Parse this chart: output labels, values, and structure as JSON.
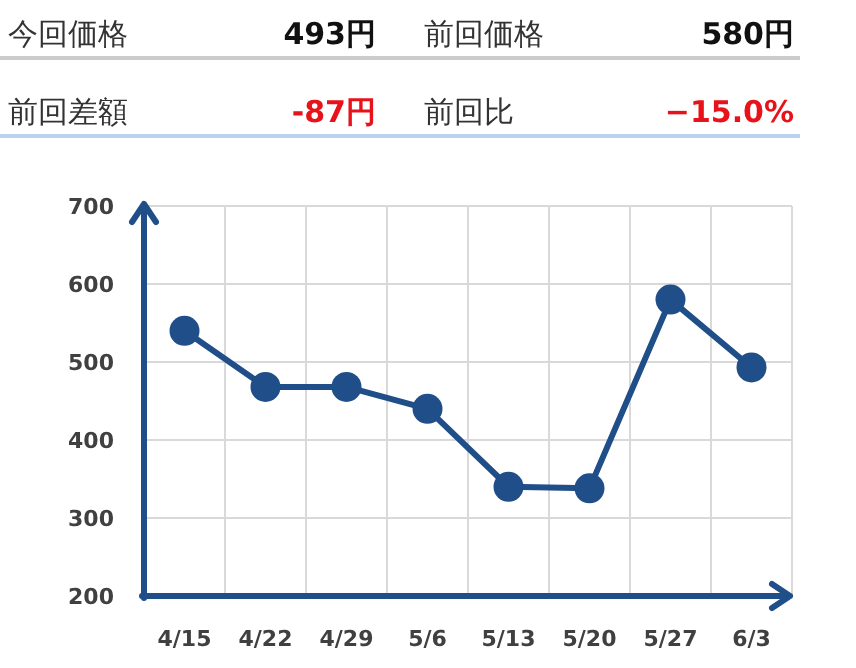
{
  "chart_data": [
    {
      "type": "other",
      "annotations": [
        "今回価格",
        "493円",
        "前回価格",
        "580円",
        "前回差額",
        "-87円",
        "前回比",
        "−15.0%"
      ]
    },
    {
      "type": "line",
      "categories": [
        "4/15",
        "4/22",
        "4/29",
        "5/6",
        "5/13",
        "5/20",
        "5/27",
        "6/3"
      ],
      "series": [
        {
          "color": "#1f4e89",
          "values": [
            540,
            468,
            468,
            440,
            340,
            338,
            580,
            493
          ]
        }
      ],
      "ylim": [
        200,
        700
      ],
      "yticks": [
        200,
        300,
        400,
        500,
        600,
        700
      ],
      "grid": true,
      "marker": "circle",
      "line_style": "solid"
    }
  ]
}
